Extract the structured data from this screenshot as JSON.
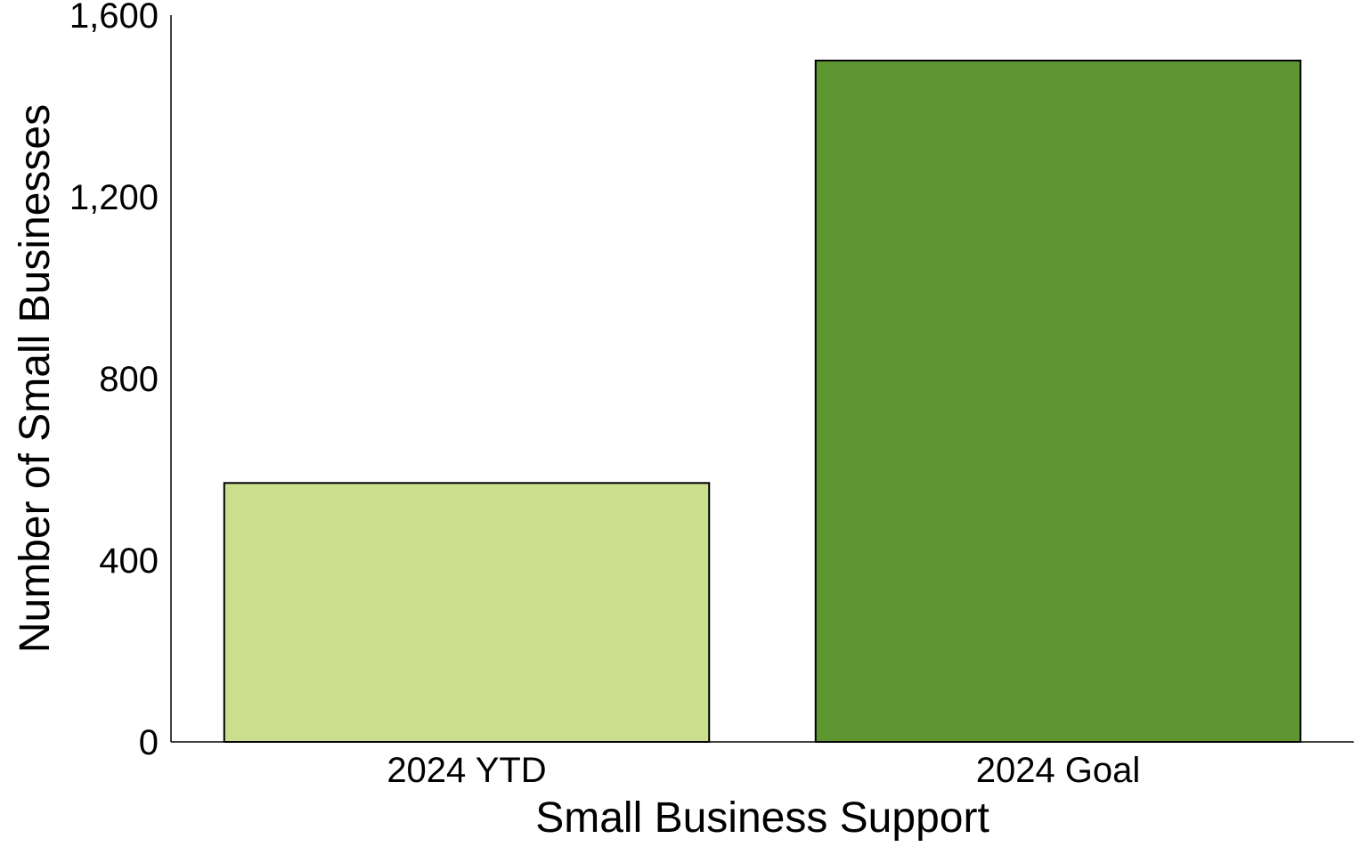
{
  "chart_data": {
    "type": "bar",
    "categories": [
      "2024 YTD",
      "2024 Goal"
    ],
    "values": [
      570,
      1500
    ],
    "bar_colors": [
      "#c9df8e",
      "#5e9732"
    ],
    "xlabel": "Small Business Support",
    "ylabel": "Number of Small Businesses",
    "ylim": [
      0,
      1600
    ],
    "yticks": [
      0,
      400,
      800,
      1200,
      1600
    ],
    "ytick_labels": [
      "0",
      "400",
      "800",
      "1,200",
      "1,600"
    ],
    "grid": false,
    "legend": "none"
  }
}
